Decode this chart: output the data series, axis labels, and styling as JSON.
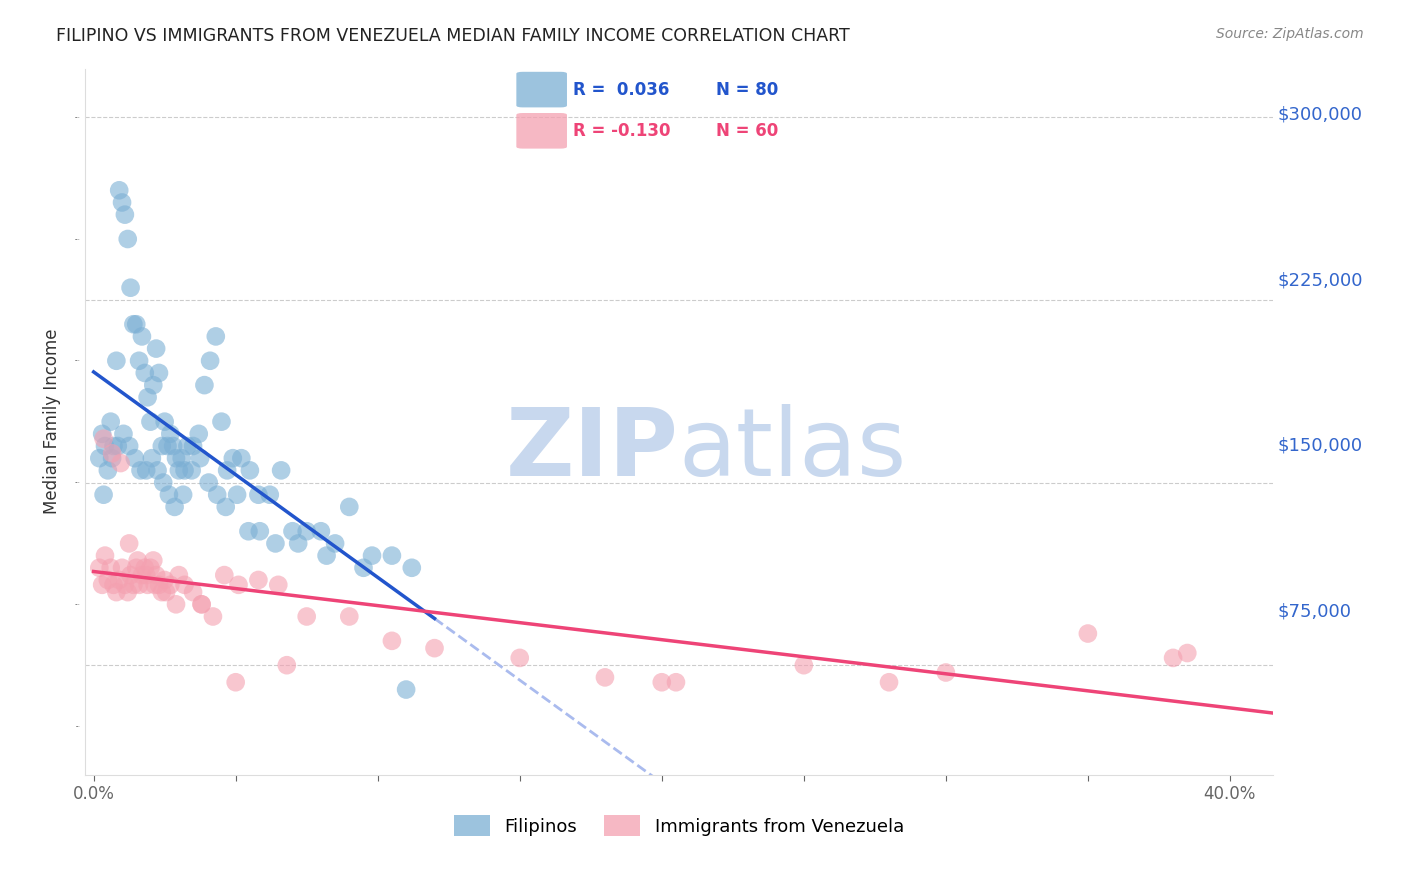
{
  "title": "FILIPINO VS IMMIGRANTS FROM VENEZUELA MEDIAN FAMILY INCOME CORRELATION CHART",
  "source_text": "Source: ZipAtlas.com",
  "ylabel": "Median Family Income",
  "xlabel_ticks": [
    "0.0%",
    "",
    "",
    "",
    "",
    "",
    "",
    "",
    "40.0%"
  ],
  "xlabel_vals": [
    0.0,
    5.0,
    10.0,
    15.0,
    20.0,
    25.0,
    30.0,
    35.0,
    40.0
  ],
  "ytick_vals": [
    0,
    75000,
    150000,
    225000,
    300000
  ],
  "ytick_labels": [
    "",
    "$75,000",
    "$150,000",
    "$225,000",
    "$300,000"
  ],
  "ymin": 30000,
  "ymax": 320000,
  "xmin": -0.3,
  "xmax": 41.5,
  "blue_color": "#7bafd4",
  "pink_color": "#f4a0b0",
  "blue_line_color": "#2255cc",
  "pink_line_color": "#ee4477",
  "dashed_line_color": "#aabbee",
  "watermark_zip": "ZIP",
  "watermark_atlas": "atlas",
  "watermark_color": "#c8d8ee",
  "background_color": "#ffffff",
  "grid_color": "#cccccc",
  "title_color": "#222222",
  "right_ytick_color": "#3366cc",
  "legend_label_blue": "Filipinos",
  "legend_label_pink": "Immigrants from Venezuela",
  "filipino_x": [
    0.2,
    0.3,
    0.4,
    0.5,
    0.6,
    0.7,
    0.8,
    0.9,
    1.0,
    1.1,
    1.2,
    1.3,
    1.4,
    1.5,
    1.6,
    1.7,
    1.8,
    1.9,
    2.0,
    2.1,
    2.2,
    2.3,
    2.4,
    2.5,
    2.6,
    2.7,
    2.8,
    2.9,
    3.0,
    3.1,
    3.2,
    3.3,
    3.5,
    3.7,
    3.9,
    4.1,
    4.3,
    4.5,
    4.7,
    4.9,
    5.2,
    5.5,
    5.8,
    6.2,
    6.6,
    7.0,
    7.5,
    8.0,
    8.5,
    9.0,
    9.8,
    10.5,
    11.2,
    0.35,
    0.65,
    0.85,
    1.05,
    1.25,
    1.45,
    1.65,
    1.85,
    2.05,
    2.25,
    2.45,
    2.65,
    2.85,
    3.15,
    3.45,
    3.75,
    4.05,
    4.35,
    4.65,
    5.05,
    5.45,
    5.85,
    6.4,
    7.2,
    8.2,
    9.5,
    11.0
  ],
  "filipino_y": [
    160000,
    170000,
    165000,
    155000,
    175000,
    165000,
    200000,
    270000,
    265000,
    260000,
    250000,
    230000,
    215000,
    215000,
    200000,
    210000,
    195000,
    185000,
    175000,
    190000,
    205000,
    195000,
    165000,
    175000,
    165000,
    170000,
    165000,
    160000,
    155000,
    160000,
    155000,
    165000,
    165000,
    170000,
    190000,
    200000,
    210000,
    175000,
    155000,
    160000,
    160000,
    155000,
    145000,
    145000,
    155000,
    130000,
    130000,
    130000,
    125000,
    140000,
    120000,
    120000,
    115000,
    145000,
    160000,
    165000,
    170000,
    165000,
    160000,
    155000,
    155000,
    160000,
    155000,
    150000,
    145000,
    140000,
    145000,
    155000,
    160000,
    150000,
    145000,
    140000,
    145000,
    130000,
    130000,
    125000,
    125000,
    120000,
    115000,
    65000
  ],
  "venezuela_x": [
    0.2,
    0.3,
    0.4,
    0.5,
    0.6,
    0.7,
    0.8,
    0.9,
    1.0,
    1.1,
    1.2,
    1.3,
    1.4,
    1.5,
    1.6,
    1.7,
    1.8,
    1.9,
    2.0,
    2.1,
    2.2,
    2.3,
    2.4,
    2.5,
    2.7,
    2.9,
    3.2,
    3.5,
    3.8,
    4.2,
    4.6,
    5.1,
    5.8,
    6.5,
    7.5,
    9.0,
    10.5,
    12.0,
    15.0,
    18.0,
    20.0,
    25.0,
    28.0,
    30.0,
    35.0,
    38.0,
    0.35,
    0.65,
    0.95,
    1.25,
    1.55,
    1.85,
    2.15,
    2.55,
    3.0,
    3.8,
    5.0,
    6.8,
    20.5,
    38.5
  ],
  "venezuela_y": [
    115000,
    108000,
    120000,
    110000,
    115000,
    108000,
    105000,
    110000,
    115000,
    108000,
    105000,
    112000,
    108000,
    115000,
    108000,
    112000,
    115000,
    108000,
    115000,
    118000,
    112000,
    108000,
    105000,
    110000,
    108000,
    100000,
    108000,
    105000,
    100000,
    95000,
    112000,
    108000,
    110000,
    108000,
    95000,
    95000,
    85000,
    82000,
    78000,
    70000,
    68000,
    75000,
    68000,
    72000,
    88000,
    78000,
    168000,
    162000,
    158000,
    125000,
    118000,
    112000,
    108000,
    105000,
    112000,
    100000,
    68000,
    75000,
    68000,
    80000
  ]
}
